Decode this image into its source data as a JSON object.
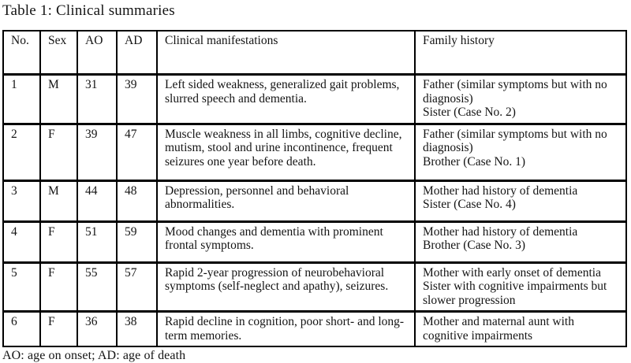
{
  "title": "Table 1: Clinical summaries",
  "footnote": "AO: age on onset; AD: age of death",
  "table": {
    "columns": [
      "No.",
      "Sex",
      "AO",
      "AD",
      "Clinical manifestations",
      "Family history"
    ],
    "rows": [
      {
        "no": "1",
        "sex": "M",
        "ao": "31",
        "ad": "39",
        "clinical": "Left sided weakness, generalized gait problems, slurred speech and dementia.",
        "family": [
          "Father (similar symptoms but with no diagnosis)",
          "Sister (Case No. 2)"
        ]
      },
      {
        "no": "2",
        "sex": "F",
        "ao": "39",
        "ad": "47",
        "clinical": "Muscle weakness in all limbs, cognitive decline, mutism, stool and urine incontinence, frequent seizures one year before death.",
        "family": [
          "Father (similar symptoms but with no diagnosis)",
          "Brother (Case No. 1)"
        ]
      },
      {
        "no": "3",
        "sex": "M",
        "ao": "44",
        "ad": "48",
        "clinical": "Depression, personnel and behavioral abnormalities.",
        "family": [
          "Mother had history of dementia",
          "Sister (Case No. 4)"
        ]
      },
      {
        "no": "4",
        "sex": "F",
        "ao": "51",
        "ad": "59",
        "clinical": "Mood changes and dementia with prominent frontal symptoms.",
        "family": [
          "Mother had history of dementia",
          "Brother (Case No. 3)"
        ]
      },
      {
        "no": "5",
        "sex": "F",
        "ao": "55",
        "ad": "57",
        "clinical": "Rapid 2-year progression of neurobehavioral symptoms (self-neglect and apathy), seizures.",
        "family": [
          "Mother with early onset of dementia",
          "Sister with cognitive impairments but slower progression"
        ]
      },
      {
        "no": "6",
        "sex": "F",
        "ao": "36",
        "ad": "38",
        "clinical": "Rapid decline in cognition, poor short- and long-term memories.",
        "family": [
          "Mother and maternal aunt with cognitive impairments"
        ]
      }
    ]
  }
}
